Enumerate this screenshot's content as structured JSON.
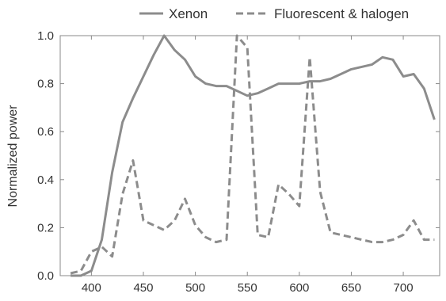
{
  "chart_data": {
    "type": "line",
    "title": "",
    "xlabel": "",
    "ylabel": "Normalized power",
    "xlim": [
      370,
      735
    ],
    "ylim": [
      0.0,
      1.0
    ],
    "x_ticks": [
      400,
      450,
      500,
      550,
      600,
      650,
      700
    ],
    "y_ticks": [
      0.0,
      0.2,
      0.4,
      0.6,
      0.8,
      1.0
    ],
    "y_tick_labels": [
      "0.0",
      "0.2",
      "0.4",
      "0.6",
      "0.8",
      "1.0"
    ],
    "grid": false,
    "legend_position": "top",
    "series": [
      {
        "name": "Xenon",
        "style": "solid",
        "color": "#8c8c8c",
        "x": [
          380,
          390,
          400,
          410,
          420,
          430,
          440,
          450,
          460,
          470,
          480,
          490,
          500,
          510,
          520,
          530,
          540,
          550,
          560,
          570,
          580,
          590,
          600,
          610,
          620,
          630,
          640,
          650,
          660,
          670,
          680,
          690,
          700,
          710,
          720,
          730
        ],
        "y": [
          0.0,
          0.0,
          0.02,
          0.15,
          0.43,
          0.64,
          0.74,
          0.83,
          0.92,
          1.0,
          0.94,
          0.9,
          0.83,
          0.8,
          0.79,
          0.79,
          0.77,
          0.75,
          0.76,
          0.78,
          0.8,
          0.8,
          0.8,
          0.81,
          0.81,
          0.82,
          0.84,
          0.86,
          0.87,
          0.88,
          0.91,
          0.9,
          0.83,
          0.84,
          0.78,
          0.65
        ]
      },
      {
        "name": "Fluorescent & halogen",
        "style": "dashed",
        "color": "#8c8c8c",
        "x": [
          380,
          390,
          400,
          410,
          420,
          430,
          440,
          450,
          460,
          470,
          480,
          490,
          500,
          510,
          520,
          530,
          540,
          550,
          560,
          570,
          580,
          590,
          600,
          610,
          620,
          630,
          640,
          650,
          660,
          670,
          680,
          690,
          700,
          710,
          720,
          730
        ],
        "y": [
          0.01,
          0.02,
          0.1,
          0.12,
          0.08,
          0.34,
          0.48,
          0.23,
          0.21,
          0.19,
          0.23,
          0.32,
          0.21,
          0.16,
          0.14,
          0.15,
          1.0,
          0.95,
          0.17,
          0.16,
          0.38,
          0.34,
          0.29,
          0.91,
          0.35,
          0.18,
          0.17,
          0.16,
          0.15,
          0.14,
          0.14,
          0.15,
          0.17,
          0.23,
          0.15,
          0.15
        ]
      }
    ]
  }
}
